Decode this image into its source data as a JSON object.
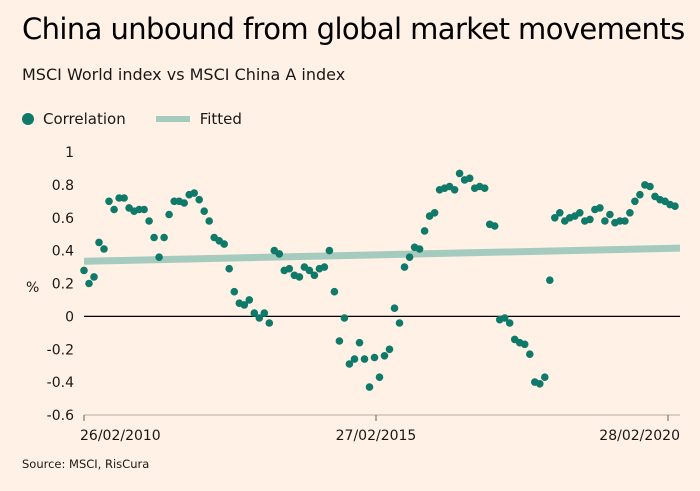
{
  "chart_data": {
    "type": "scatter",
    "title": "China unbound from global market movements",
    "subtitle": "MSCI World index vs MSCI China A index",
    "ylabel": "%",
    "xlabel": "",
    "ylim": [
      -0.6,
      1
    ],
    "yticks": [
      1,
      0.8,
      0.6,
      0.4,
      0.2,
      0,
      -0.2,
      -0.4,
      -0.6
    ],
    "ytick_labels": [
      "1",
      "0.8",
      "0.6",
      "0.4",
      "0.2",
      "0",
      "-0.2",
      "-0.4",
      "-0.6"
    ],
    "xtick_labels": [
      "26/02/2010",
      "27/02/2015",
      "28/02/2020"
    ],
    "zero_line": true,
    "grid": false,
    "legend": {
      "placement": "top-left",
      "items": [
        "Correlation",
        "Fitted"
      ]
    },
    "colors": {
      "points": "#0f7a69",
      "fitted": "#a4cbbe",
      "axis": "#000000"
    },
    "series": [
      {
        "name": "Correlation",
        "kind": "scatter",
        "values": [
          0.28,
          0.2,
          0.24,
          0.45,
          0.41,
          0.7,
          0.65,
          0.72,
          0.72,
          0.66,
          0.64,
          0.65,
          0.65,
          0.58,
          0.48,
          0.36,
          0.48,
          0.62,
          0.7,
          0.7,
          0.69,
          0.74,
          0.75,
          0.71,
          0.64,
          0.58,
          0.48,
          0.46,
          0.44,
          0.29,
          0.15,
          0.08,
          0.07,
          0.1,
          0.02,
          -0.01,
          0.02,
          -0.04,
          0.4,
          0.38,
          0.28,
          0.29,
          0.25,
          0.24,
          0.3,
          0.28,
          0.25,
          0.29,
          0.3,
          0.4,
          0.15,
          -0.15,
          -0.01,
          -0.29,
          -0.26,
          -0.16,
          -0.26,
          -0.43,
          -0.25,
          -0.37,
          -0.24,
          -0.2,
          0.05,
          -0.04,
          0.3,
          0.36,
          0.42,
          0.41,
          0.52,
          0.61,
          0.63,
          0.77,
          0.78,
          0.79,
          0.77,
          0.87,
          0.83,
          0.84,
          0.78,
          0.79,
          0.78,
          0.56,
          0.55,
          -0.02,
          -0.01,
          -0.04,
          -0.14,
          -0.16,
          -0.17,
          -0.23,
          -0.4,
          -0.41,
          -0.37,
          0.22,
          0.6,
          0.63,
          0.58,
          0.6,
          0.61,
          0.63,
          0.58,
          0.59,
          0.65,
          0.66,
          0.58,
          0.62,
          0.57,
          0.58,
          0.58,
          0.63,
          0.7,
          0.74,
          0.8,
          0.79,
          0.73,
          0.71,
          0.7,
          0.68,
          0.67
        ]
      },
      {
        "name": "Fitted",
        "kind": "line",
        "values": [
          0.335,
          0.415
        ]
      }
    ]
  },
  "footer": {
    "source": "Source: MSCI, RisCura"
  }
}
